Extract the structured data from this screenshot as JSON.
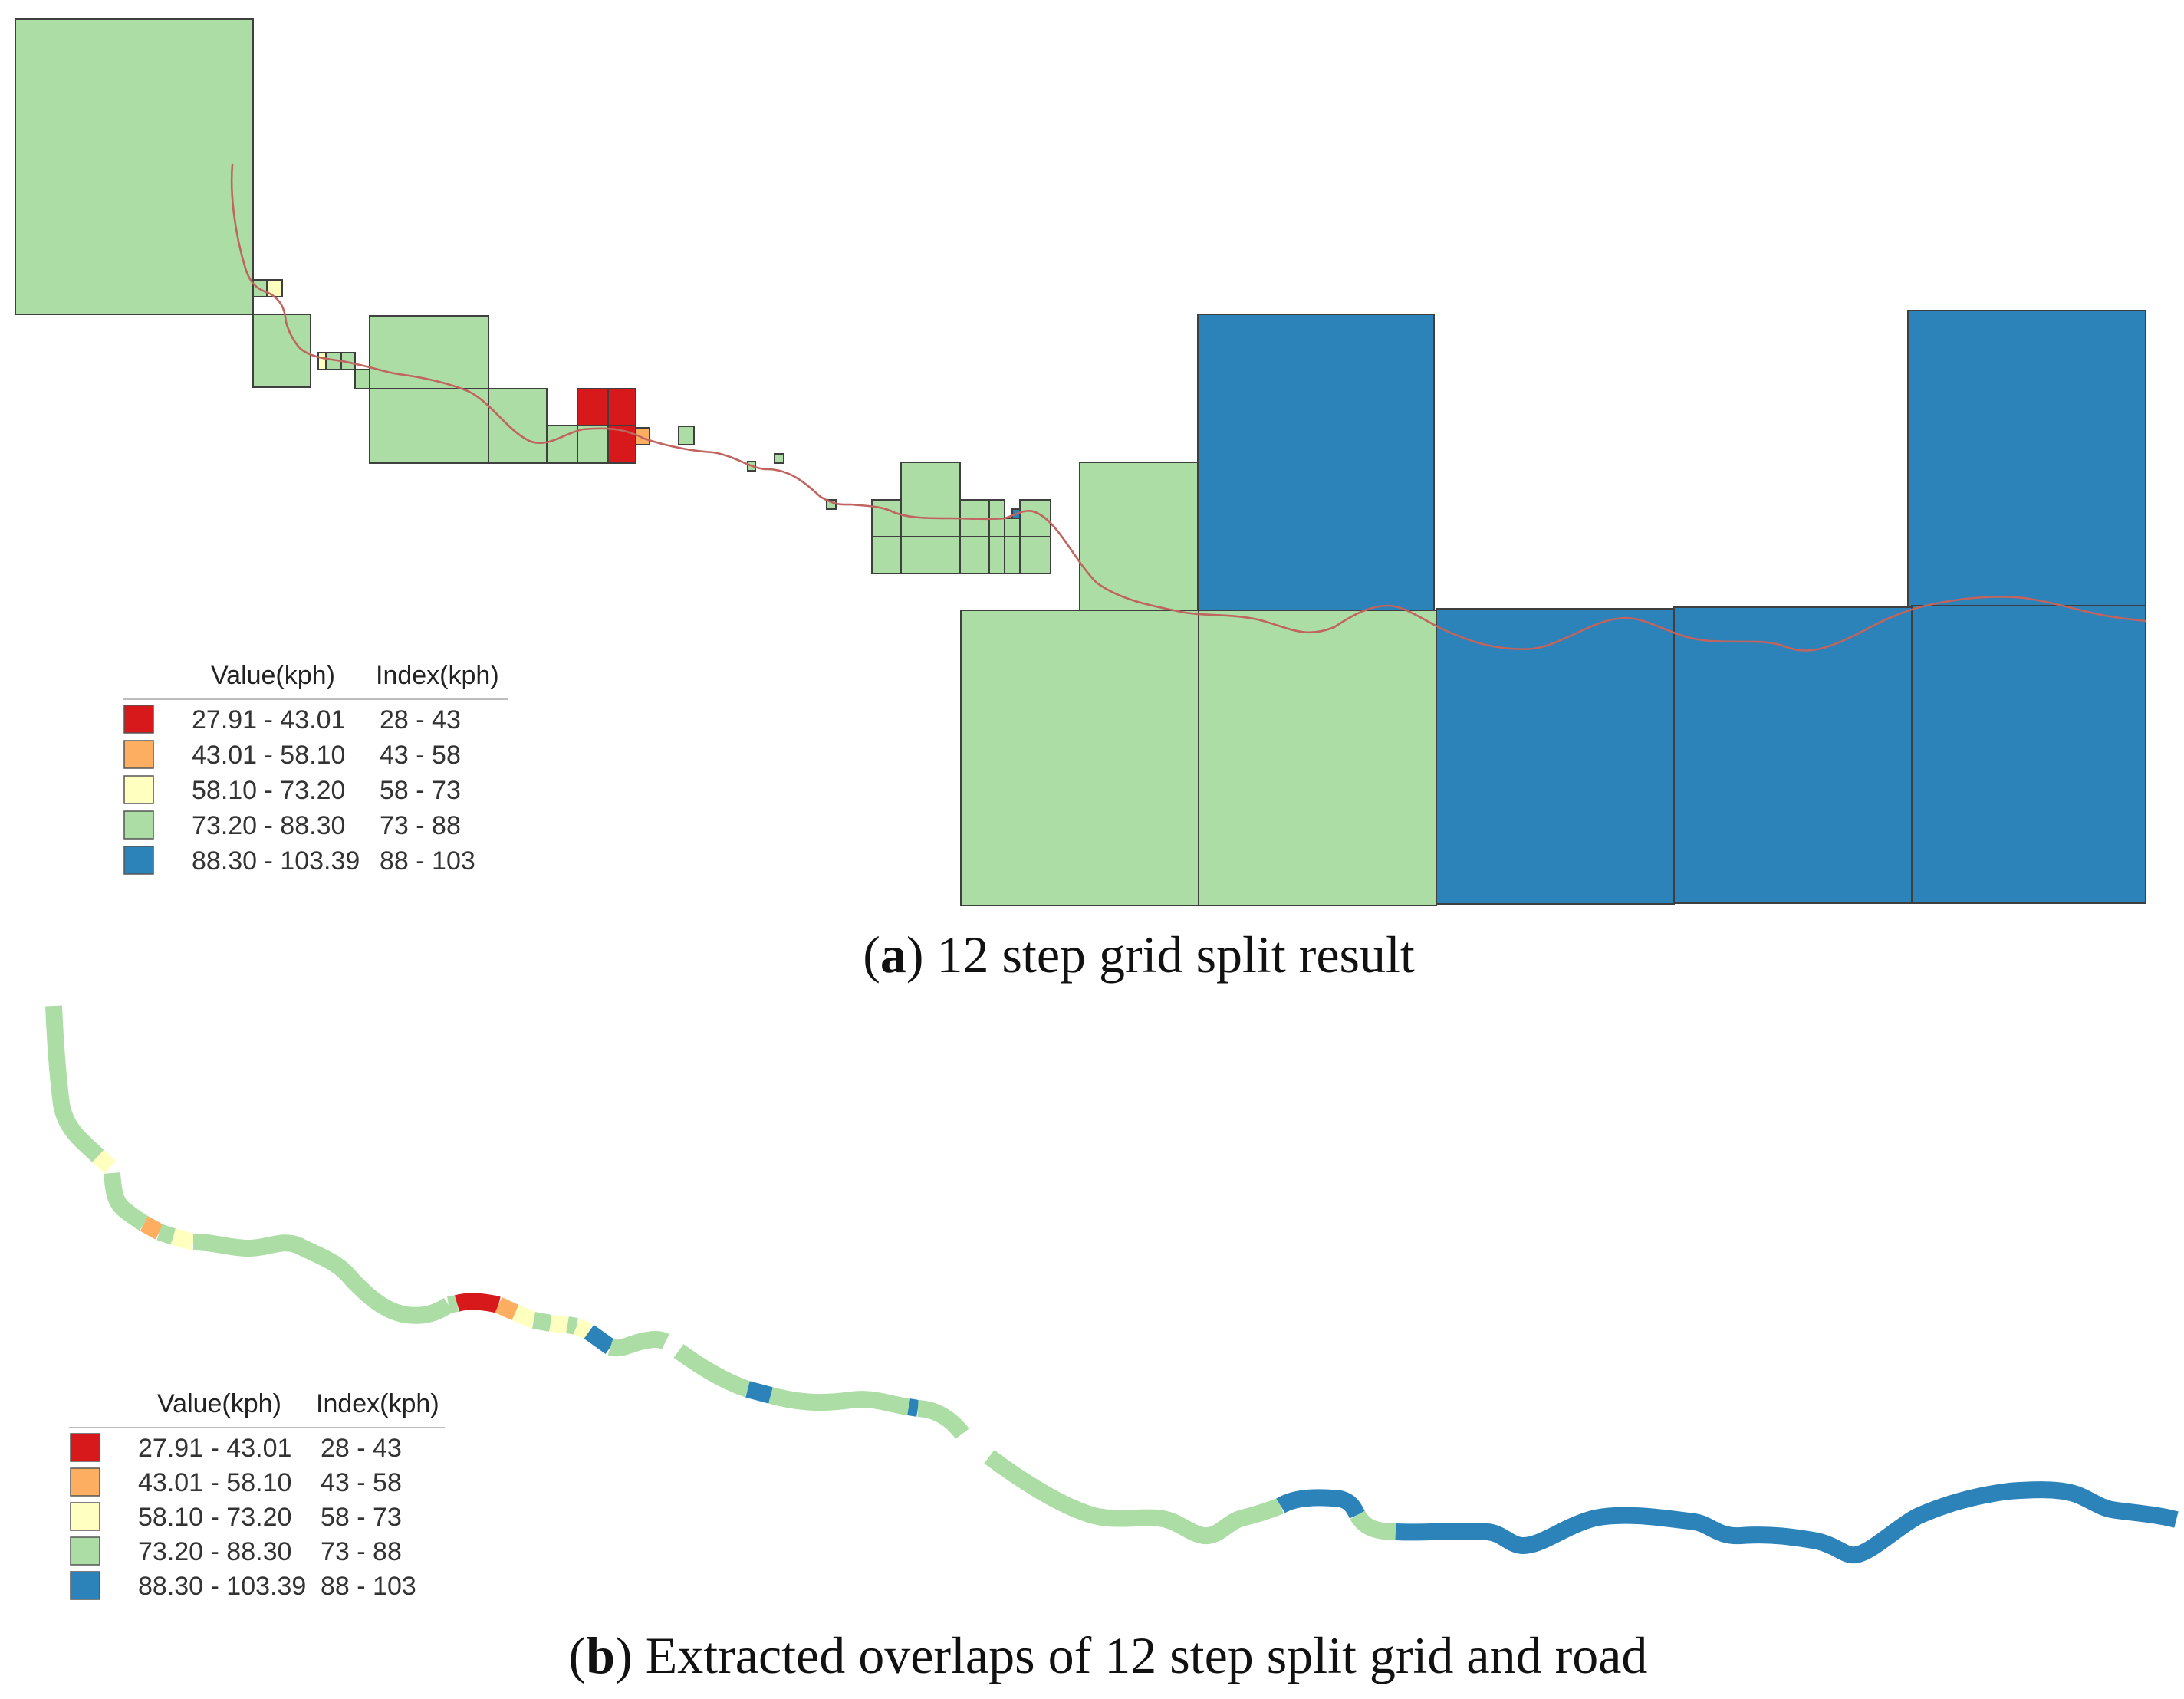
{
  "colors": {
    "c1": "#d7191c",
    "c2": "#fdae61",
    "c3": "#ffffbf",
    "c4": "#abdda4",
    "c5": "#2b83ba",
    "route": "#c0645f"
  },
  "legend": {
    "header_value": "Value(kph)",
    "header_index": "Index(kph)",
    "classes": [
      {
        "value": "27.91  -  43.01",
        "index": "28  -  43",
        "color_key": "c1"
      },
      {
        "value": "43.01  -  58.10",
        "index": "43  -  58",
        "color_key": "c2"
      },
      {
        "value": "58.10  -  73.20",
        "index": "58  -  73",
        "color_key": "c3"
      },
      {
        "value": "73.20  -  88.30",
        "index": "73  -  88",
        "color_key": "c4"
      },
      {
        "value": "88.30  -  103.39",
        "index": "88  -  103",
        "color_key": "c5"
      }
    ]
  },
  "panel_a": {
    "caption_label": "a",
    "caption_text": "12 step grid split result"
  },
  "panel_b": {
    "caption_label": "b",
    "caption_text": "Extracted overlaps of 12 step split grid and road",
    "segment_classes": [
      "c4",
      "c3",
      "c4",
      "c2",
      "c4",
      "c3",
      "c4",
      "c4",
      "c1",
      "c2",
      "c3",
      "c4",
      "c3",
      "c4",
      "c3",
      "c5",
      "c4",
      "c4",
      "c5",
      "c4",
      "c5",
      "c4",
      "c4",
      "c5",
      "c4",
      "c5"
    ]
  }
}
